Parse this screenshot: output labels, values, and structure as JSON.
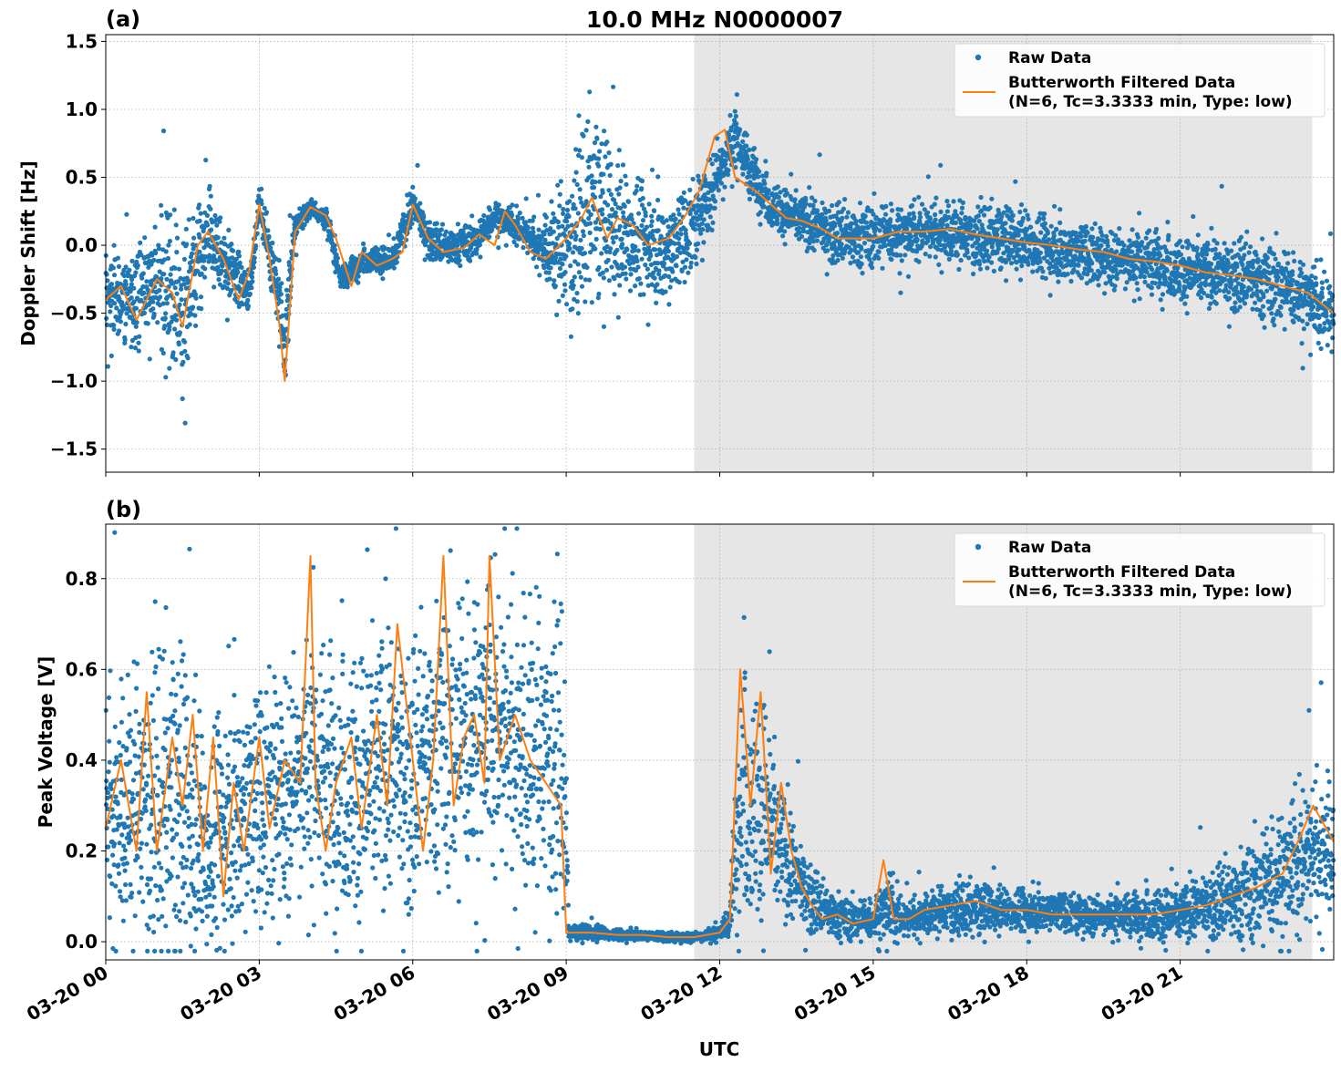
{
  "title": "10.0 MHz N0000007",
  "x_axis": {
    "label": "UTC",
    "tick_labels": [
      "03-20 00",
      "03-20 03",
      "03-20 06",
      "03-20 09",
      "03-20 12",
      "03-20 15",
      "03-20 18",
      "03-20 21"
    ],
    "tick_hours": [
      0,
      3,
      6,
      9,
      12,
      15,
      18,
      21
    ],
    "range_hours": [
      0,
      24
    ]
  },
  "colors": {
    "raw": "#1f77b4",
    "filtered": "#ff7f0e",
    "shade": "#e6e6e6"
  },
  "legend": {
    "raw_label": "Raw Data",
    "filtered_label_line1": "Butterworth Filtered Data",
    "filtered_label_line2": "(N=6, Tc=3.3333 min, Type: low)"
  },
  "chart_data": [
    {
      "type": "scatter",
      "panel": "(a)",
      "ylabel": "Doppler Shift [Hz]",
      "ylim": [
        -1.67,
        1.55
      ],
      "yticks": [
        1.5,
        1.0,
        0.5,
        0.0,
        -0.5,
        -1.0,
        -1.5
      ],
      "ytick_labels": [
        "1.5",
        "1.0",
        "0.5",
        "0.0",
        "−0.5",
        "−1.0",
        "−1.5"
      ],
      "grid": true,
      "legend_position": "top-right",
      "shaded_x_range_hours": [
        11.5,
        23.58
      ],
      "series": [
        {
          "name": "Raw Data",
          "style": "dots",
          "x_hours": [
            0,
            0.5,
            1,
            1.3,
            1.5,
            2,
            2.5,
            2.8,
            3,
            3.3,
            3.5,
            3.7,
            4,
            4.3,
            4.6,
            5,
            5.3,
            5.6,
            6,
            6.3,
            6.6,
            7,
            7.3,
            7.6,
            8,
            8.5,
            9,
            9.5,
            10,
            10.5,
            11,
            11.5,
            12,
            12.3,
            12.6,
            13,
            13.5,
            14,
            14.5,
            15,
            15.5,
            16,
            16.5,
            17,
            17.5,
            18,
            18.5,
            19,
            19.5,
            20,
            20.5,
            21,
            21.5,
            22,
            22.5,
            23,
            23.5,
            24
          ],
          "y_center": [
            -0.35,
            -0.4,
            -0.25,
            -0.3,
            -0.5,
            0.05,
            -0.2,
            -0.35,
            0.3,
            -0.2,
            -0.75,
            0.15,
            0.28,
            0.2,
            -0.25,
            -0.12,
            -0.1,
            -0.12,
            0.3,
            0.05,
            -0.02,
            0.02,
            0.05,
            0.22,
            0.15,
            0.0,
            -0.05,
            0.3,
            0.1,
            0.05,
            -0.05,
            0.15,
            0.55,
            0.8,
            0.55,
            0.3,
            0.2,
            0.12,
            0.05,
            0.08,
            0.08,
            0.12,
            0.1,
            0.05,
            0.05,
            0.02,
            -0.02,
            -0.05,
            -0.08,
            -0.1,
            -0.12,
            -0.18,
            -0.2,
            -0.22,
            -0.25,
            -0.3,
            -0.38,
            -0.5
          ],
          "y_spread": [
            0.25,
            0.3,
            0.35,
            0.6,
            0.5,
            0.3,
            0.2,
            0.15,
            0.1,
            0.2,
            0.35,
            0.1,
            0.06,
            0.08,
            0.08,
            0.08,
            0.08,
            0.1,
            0.12,
            0.12,
            0.12,
            0.12,
            0.12,
            0.1,
            0.12,
            0.15,
            0.5,
            0.6,
            0.45,
            0.35,
            0.35,
            0.3,
            0.25,
            0.2,
            0.18,
            0.15,
            0.15,
            0.18,
            0.2,
            0.2,
            0.2,
            0.2,
            0.2,
            0.2,
            0.2,
            0.2,
            0.2,
            0.2,
            0.2,
            0.2,
            0.2,
            0.2,
            0.2,
            0.22,
            0.25,
            0.25,
            0.25,
            0.3
          ]
        },
        {
          "name": "Butterworth Filtered Data",
          "style": "line",
          "x_hours": [
            0,
            0.3,
            0.6,
            1,
            1.3,
            1.5,
            1.8,
            2,
            2.3,
            2.6,
            2.8,
            3,
            3.2,
            3.4,
            3.5,
            3.7,
            4,
            4.3,
            4.5,
            4.8,
            5,
            5.3,
            5.6,
            5.8,
            6,
            6.3,
            6.6,
            7,
            7.3,
            7.6,
            7.8,
            8,
            8.3,
            8.6,
            9,
            9.3,
            9.5,
            9.8,
            10,
            10.3,
            10.6,
            11,
            11.3,
            11.6,
            11.9,
            12.1,
            12.3,
            12.5,
            12.7,
            13,
            13.3,
            13.6,
            14,
            14.3,
            14.6,
            15,
            15.5,
            16,
            16.5,
            17,
            17.5,
            18,
            18.5,
            19,
            19.5,
            20,
            20.5,
            21,
            21.5,
            22,
            22.5,
            23,
            23.5,
            24
          ],
          "y": [
            -0.4,
            -0.3,
            -0.55,
            -0.25,
            -0.35,
            -0.6,
            0.0,
            0.1,
            -0.1,
            -0.4,
            -0.2,
            0.3,
            -0.1,
            -0.6,
            -1.0,
            0.1,
            0.28,
            0.22,
            0.05,
            -0.3,
            -0.05,
            -0.15,
            -0.1,
            -0.05,
            0.3,
            0.05,
            -0.05,
            -0.02,
            0.08,
            0.0,
            0.25,
            0.15,
            -0.05,
            -0.1,
            0.05,
            0.2,
            0.35,
            0.05,
            0.2,
            0.15,
            0.0,
            0.05,
            0.2,
            0.4,
            0.8,
            0.85,
            0.5,
            0.45,
            0.4,
            0.3,
            0.2,
            0.18,
            0.12,
            0.05,
            0.05,
            0.05,
            0.1,
            0.1,
            0.12,
            0.08,
            0.05,
            0.02,
            0.0,
            -0.03,
            -0.05,
            -0.1,
            -0.12,
            -0.15,
            -0.2,
            -0.22,
            -0.25,
            -0.3,
            -0.35,
            -0.5
          ]
        }
      ]
    },
    {
      "type": "scatter",
      "panel": "(b)",
      "ylabel": "Peak Voltage [V]",
      "ylim": [
        -0.04,
        0.92
      ],
      "yticks": [
        0.8,
        0.6,
        0.4,
        0.2,
        0.0
      ],
      "ytick_labels": [
        "0.8",
        "0.6",
        "0.4",
        "0.2",
        "0.0"
      ],
      "grid": true,
      "legend_position": "top-right",
      "shaded_x_range_hours": [
        11.5,
        23.58
      ],
      "series": [
        {
          "name": "Raw Data",
          "style": "dots",
          "x_hours": [
            0,
            0.5,
            1,
            1.5,
            2,
            2.5,
            3,
            3.5,
            4,
            4.5,
            5,
            5.5,
            6,
            6.5,
            7,
            7.5,
            8,
            8.5,
            8.95,
            9.05,
            9.5,
            10,
            10.5,
            11,
            11.5,
            12,
            12.2,
            12.4,
            12.6,
            12.9,
            13.2,
            13.6,
            14,
            14.5,
            15,
            15.3,
            15.6,
            16,
            16.5,
            17,
            17.5,
            18,
            18.5,
            19,
            19.5,
            20,
            20.5,
            21,
            21.5,
            22,
            22.5,
            23,
            23.5,
            24
          ],
          "y_center": [
            0.3,
            0.3,
            0.3,
            0.3,
            0.2,
            0.3,
            0.3,
            0.35,
            0.4,
            0.35,
            0.35,
            0.4,
            0.35,
            0.45,
            0.45,
            0.5,
            0.45,
            0.4,
            0.4,
            0.02,
            0.02,
            0.015,
            0.015,
            0.01,
            0.01,
            0.02,
            0.05,
            0.35,
            0.3,
            0.3,
            0.2,
            0.12,
            0.07,
            0.05,
            0.05,
            0.08,
            0.05,
            0.06,
            0.07,
            0.07,
            0.07,
            0.07,
            0.07,
            0.06,
            0.06,
            0.06,
            0.06,
            0.06,
            0.08,
            0.09,
            0.12,
            0.15,
            0.2,
            0.22
          ],
          "y_spread": [
            0.25,
            0.25,
            0.3,
            0.3,
            0.2,
            0.25,
            0.25,
            0.25,
            0.25,
            0.25,
            0.25,
            0.25,
            0.25,
            0.25,
            0.3,
            0.3,
            0.3,
            0.3,
            0.3,
            0.015,
            0.015,
            0.01,
            0.01,
            0.01,
            0.01,
            0.015,
            0.03,
            0.25,
            0.22,
            0.2,
            0.12,
            0.08,
            0.05,
            0.04,
            0.04,
            0.08,
            0.04,
            0.04,
            0.05,
            0.05,
            0.04,
            0.04,
            0.04,
            0.04,
            0.04,
            0.04,
            0.05,
            0.05,
            0.06,
            0.08,
            0.1,
            0.14,
            0.16,
            0.14
          ]
        },
        {
          "name": "Butterworth Filtered Data",
          "style": "line",
          "x_hours": [
            0,
            0.3,
            0.6,
            0.8,
            1,
            1.3,
            1.5,
            1.7,
            1.9,
            2.1,
            2.3,
            2.5,
            2.7,
            3,
            3.2,
            3.5,
            3.8,
            4,
            4.1,
            4.3,
            4.5,
            4.8,
            5,
            5.3,
            5.5,
            5.7,
            6,
            6.2,
            6.4,
            6.6,
            6.8,
            7,
            7.2,
            7.4,
            7.5,
            7.7,
            8,
            8.3,
            8.6,
            8.9,
            9.0,
            9.2,
            9.5,
            10,
            10.5,
            11,
            11.5,
            12,
            12.2,
            12.4,
            12.6,
            12.8,
            13,
            13.2,
            13.4,
            13.6,
            13.8,
            14,
            14.3,
            14.6,
            15,
            15.2,
            15.4,
            15.7,
            16,
            16.5,
            17,
            17.5,
            18,
            18.5,
            19,
            19.5,
            20,
            20.5,
            21,
            21.5,
            22,
            22.5,
            23,
            23.3,
            23.6,
            24
          ],
          "y": [
            0.25,
            0.4,
            0.2,
            0.55,
            0.2,
            0.45,
            0.3,
            0.5,
            0.2,
            0.45,
            0.1,
            0.35,
            0.2,
            0.45,
            0.25,
            0.4,
            0.35,
            0.85,
            0.35,
            0.2,
            0.35,
            0.45,
            0.25,
            0.5,
            0.3,
            0.7,
            0.4,
            0.2,
            0.4,
            0.85,
            0.3,
            0.45,
            0.5,
            0.35,
            0.85,
            0.4,
            0.5,
            0.4,
            0.35,
            0.3,
            0.02,
            0.02,
            0.02,
            0.015,
            0.015,
            0.01,
            0.01,
            0.02,
            0.05,
            0.6,
            0.3,
            0.55,
            0.15,
            0.35,
            0.2,
            0.12,
            0.08,
            0.05,
            0.06,
            0.04,
            0.05,
            0.18,
            0.05,
            0.05,
            0.07,
            0.08,
            0.09,
            0.07,
            0.07,
            0.06,
            0.06,
            0.06,
            0.06,
            0.06,
            0.07,
            0.08,
            0.1,
            0.12,
            0.15,
            0.22,
            0.3,
            0.22
          ]
        }
      ]
    }
  ]
}
